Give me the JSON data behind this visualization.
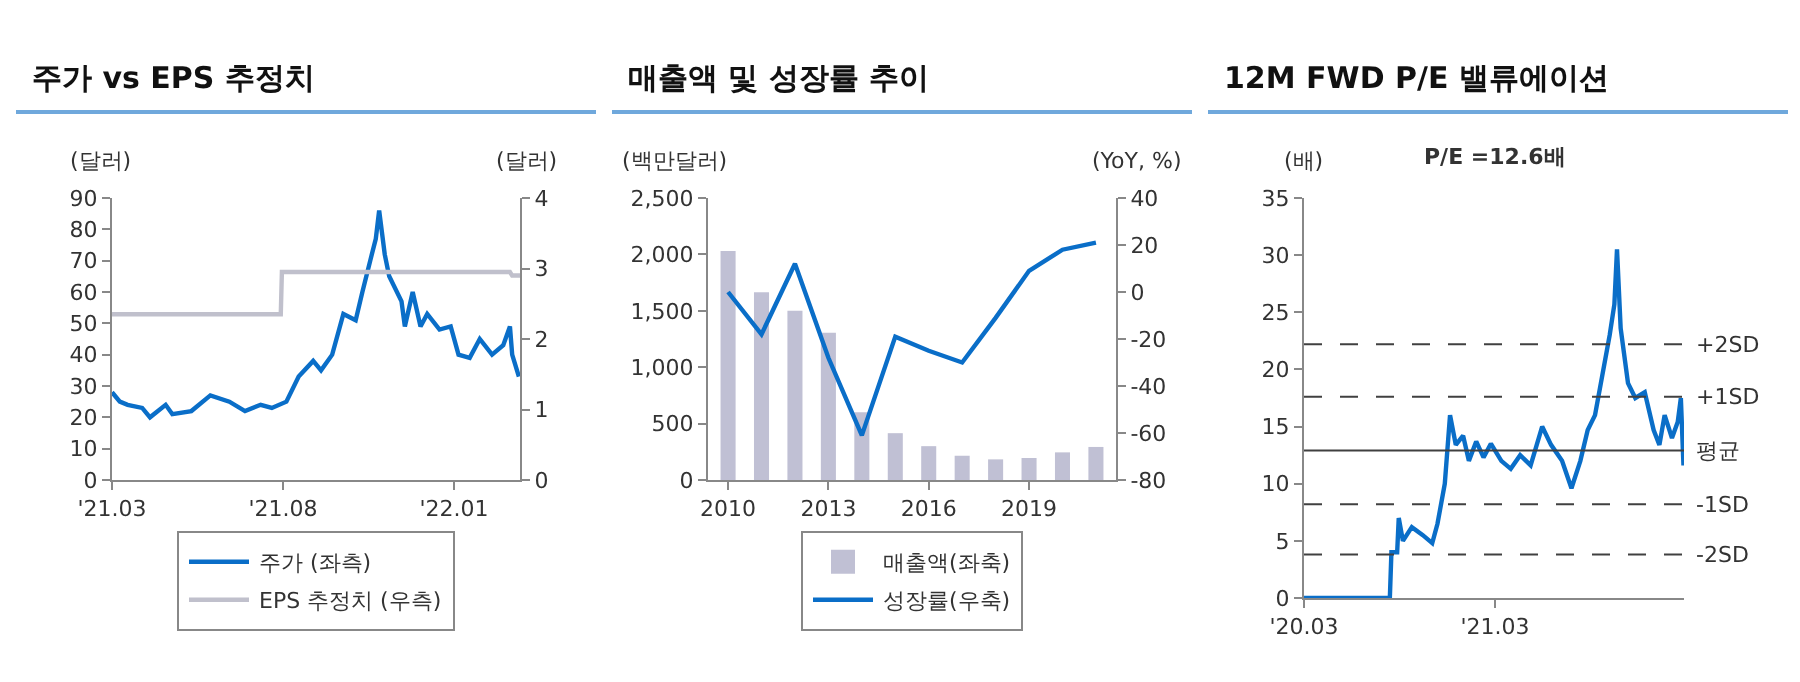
{
  "chart_data": [
    {
      "type": "line",
      "title": "주가 vs EPS 추정치",
      "ylabel": "(달러)",
      "y2label": "(달러)",
      "xlim": [
        "2021-03-01",
        "2022-03-01"
      ],
      "xticks": [
        {
          "value": "2021-03-01",
          "label": "'21.03"
        },
        {
          "value": "2021-08-01",
          "label": "'21.08"
        },
        {
          "value": "2022-01-01",
          "label": "'22.01"
        }
      ],
      "ylim": [
        0,
        90
      ],
      "yticks": [
        0,
        10,
        20,
        30,
        40,
        50,
        60,
        70,
        80,
        90
      ],
      "y2lim": [
        0,
        4
      ],
      "y2ticks": [
        0,
        1,
        2,
        3,
        4
      ],
      "grid": false,
      "legend": "bottom",
      "series": [
        {
          "name": "주가 (좌측)",
          "color": "#0a6ec8",
          "x": [
            "2021-03-01",
            "2021-03-08",
            "2021-03-15",
            "2021-03-28",
            "2021-04-04",
            "2021-04-18",
            "2021-04-24",
            "2021-05-11",
            "2021-05-28",
            "2021-06-14",
            "2021-06-28",
            "2021-07-12",
            "2021-07-22",
            "2021-08-04",
            "2021-08-15",
            "2021-08-28",
            "2021-09-04",
            "2021-09-14",
            "2021-09-24",
            "2021-10-05",
            "2021-10-11",
            "2021-10-18",
            "2021-10-23",
            "2021-10-26",
            "2021-10-31",
            "2021-11-04",
            "2021-11-15",
            "2021-11-18",
            "2021-11-25",
            "2021-12-02",
            "2021-12-08",
            "2021-12-19",
            "2021-12-29",
            "2022-01-05",
            "2022-01-15",
            "2022-01-24",
            "2022-02-04",
            "2022-02-14",
            "2022-02-20",
            "2022-02-22",
            "2022-02-28"
          ],
          "values": [
            28,
            25,
            24,
            23,
            20,
            24,
            21,
            22,
            27,
            25,
            22,
            24,
            23,
            25,
            33,
            38,
            35,
            40,
            53,
            51,
            60,
            70,
            77,
            86,
            72,
            65,
            57,
            49,
            60,
            49,
            53,
            48,
            49,
            40,
            39,
            45,
            40,
            43,
            49,
            40,
            33
          ]
        },
        {
          "name": "EPS 추정치 (우측)",
          "color": "#c0c0cc",
          "axis": "y2",
          "x": [
            "2021-03-01",
            "2021-07-30",
            "2021-07-31",
            "2022-02-20",
            "2022-02-22",
            "2022-03-01"
          ],
          "values": [
            2.35,
            2.35,
            2.95,
            2.95,
            2.9,
            2.9
          ]
        }
      ]
    },
    {
      "type": "bar",
      "title": "매출액 및 성장률 추이",
      "ylabel": "(백만달러)",
      "y2label": "(YoY, %)",
      "xlim": [
        2009.4,
        2021.6
      ],
      "xticks": [
        2010,
        2013,
        2016,
        2019
      ],
      "ylim": [
        0,
        2500
      ],
      "yticks": [
        0,
        {
          "value": 500,
          "label": "500"
        },
        {
          "value": 1000,
          "label": "1,000"
        },
        {
          "value": 1500,
          "label": "1,500"
        },
        {
          "value": 2000,
          "label": "2,000"
        },
        {
          "value": 2500,
          "label": "2,500"
        }
      ],
      "y2lim": [
        -80,
        40
      ],
      "y2ticks": [
        -80,
        -60,
        -40,
        -20,
        0,
        20,
        40
      ],
      "grid": false,
      "legend": "bottom",
      "x": [
        2010,
        2011,
        2012,
        2013,
        2014,
        2015,
        2016,
        2017,
        2018,
        2019,
        2020,
        2021
      ],
      "series": [
        {
          "name": "매출액(좌축)",
          "color": "#c0c0d4",
          "values": [
            2030,
            1665,
            1500,
            1305,
            600,
            415,
            300,
            215,
            183,
            195,
            245,
            293
          ]
        },
        {
          "name": "성장률(우축)",
          "type": "line",
          "axis": "y2",
          "color": "#0a6ec8",
          "values": [
            0,
            -18,
            12,
            -28,
            -61,
            -19,
            -25,
            -30,
            -11,
            9,
            18,
            21
          ]
        }
      ]
    },
    {
      "type": "line",
      "title": "12M FWD P/E 밸류에이션",
      "subtitle": "P/E =12.6배",
      "ylabel": "(배)",
      "xlim": [
        "2020-03-01",
        "2022-02-25"
      ],
      "xticks": [
        {
          "value": "2020-03-01",
          "label": "'20.03"
        },
        {
          "value": "2021-03-01",
          "label": "'21.03"
        }
      ],
      "ylim": [
        0,
        35
      ],
      "yticks": [
        0,
        5,
        10,
        15,
        20,
        25,
        30,
        35
      ],
      "grid": false,
      "legend": false,
      "ref_lines": [
        {
          "axis": "y",
          "value": 22.2,
          "label": "+2SD",
          "color": "#404040",
          "line_style": "dashed"
        },
        {
          "axis": "y",
          "value": 17.6,
          "label": "+1SD",
          "color": "#404040",
          "line_style": "dashed"
        },
        {
          "axis": "y",
          "value": 12.9,
          "label": "평균",
          "color": "#404040",
          "line_style": "solid"
        },
        {
          "axis": "y",
          "value": 8.2,
          "label": "-1SD",
          "color": "#404040",
          "line_style": "dashed"
        },
        {
          "axis": "y",
          "value": 3.8,
          "label": "-2SD",
          "color": "#404040",
          "line_style": "dashed"
        }
      ],
      "series": [
        {
          "color": "#0a6ec8",
          "x": [
            "2020-03-01",
            "2020-08-12",
            "2020-08-15",
            "2020-08-26",
            "2020-08-29",
            "2020-09-06",
            "2020-09-23",
            "2020-10-14",
            "2020-11-01",
            "2020-11-11",
            "2020-11-25",
            "2020-12-05",
            "2020-12-16",
            "2020-12-30",
            "2021-01-10",
            "2021-01-24",
            "2021-02-07",
            "2021-02-21",
            "2021-03-13",
            "2021-03-31",
            "2021-04-18",
            "2021-05-08",
            "2021-05-30",
            "2021-06-16",
            "2021-07-07",
            "2021-07-25",
            "2021-08-11",
            "2021-08-25",
            "2021-09-08",
            "2021-09-22",
            "2021-10-06",
            "2021-10-15",
            "2021-10-20",
            "2021-10-27",
            "2021-11-10",
            "2021-11-24",
            "2021-12-12",
            "2021-12-29",
            "2022-01-09",
            "2022-01-19",
            "2022-02-02",
            "2022-02-13",
            "2022-02-19",
            "2022-02-24"
          ],
          "values": [
            0,
            0,
            4,
            4,
            7,
            5,
            6.2,
            5.5,
            4.8,
            6.5,
            10,
            16,
            13.4,
            14.2,
            12,
            13.7,
            12.3,
            13.5,
            12,
            11.3,
            12.5,
            11.6,
            15,
            13.4,
            12,
            9.6,
            12,
            14.7,
            16,
            19.5,
            23,
            25.7,
            30.5,
            23.6,
            18.8,
            17.5,
            18,
            14.7,
            13.4,
            16,
            14,
            15.4,
            17.5,
            11.6
          ]
        }
      ]
    }
  ]
}
